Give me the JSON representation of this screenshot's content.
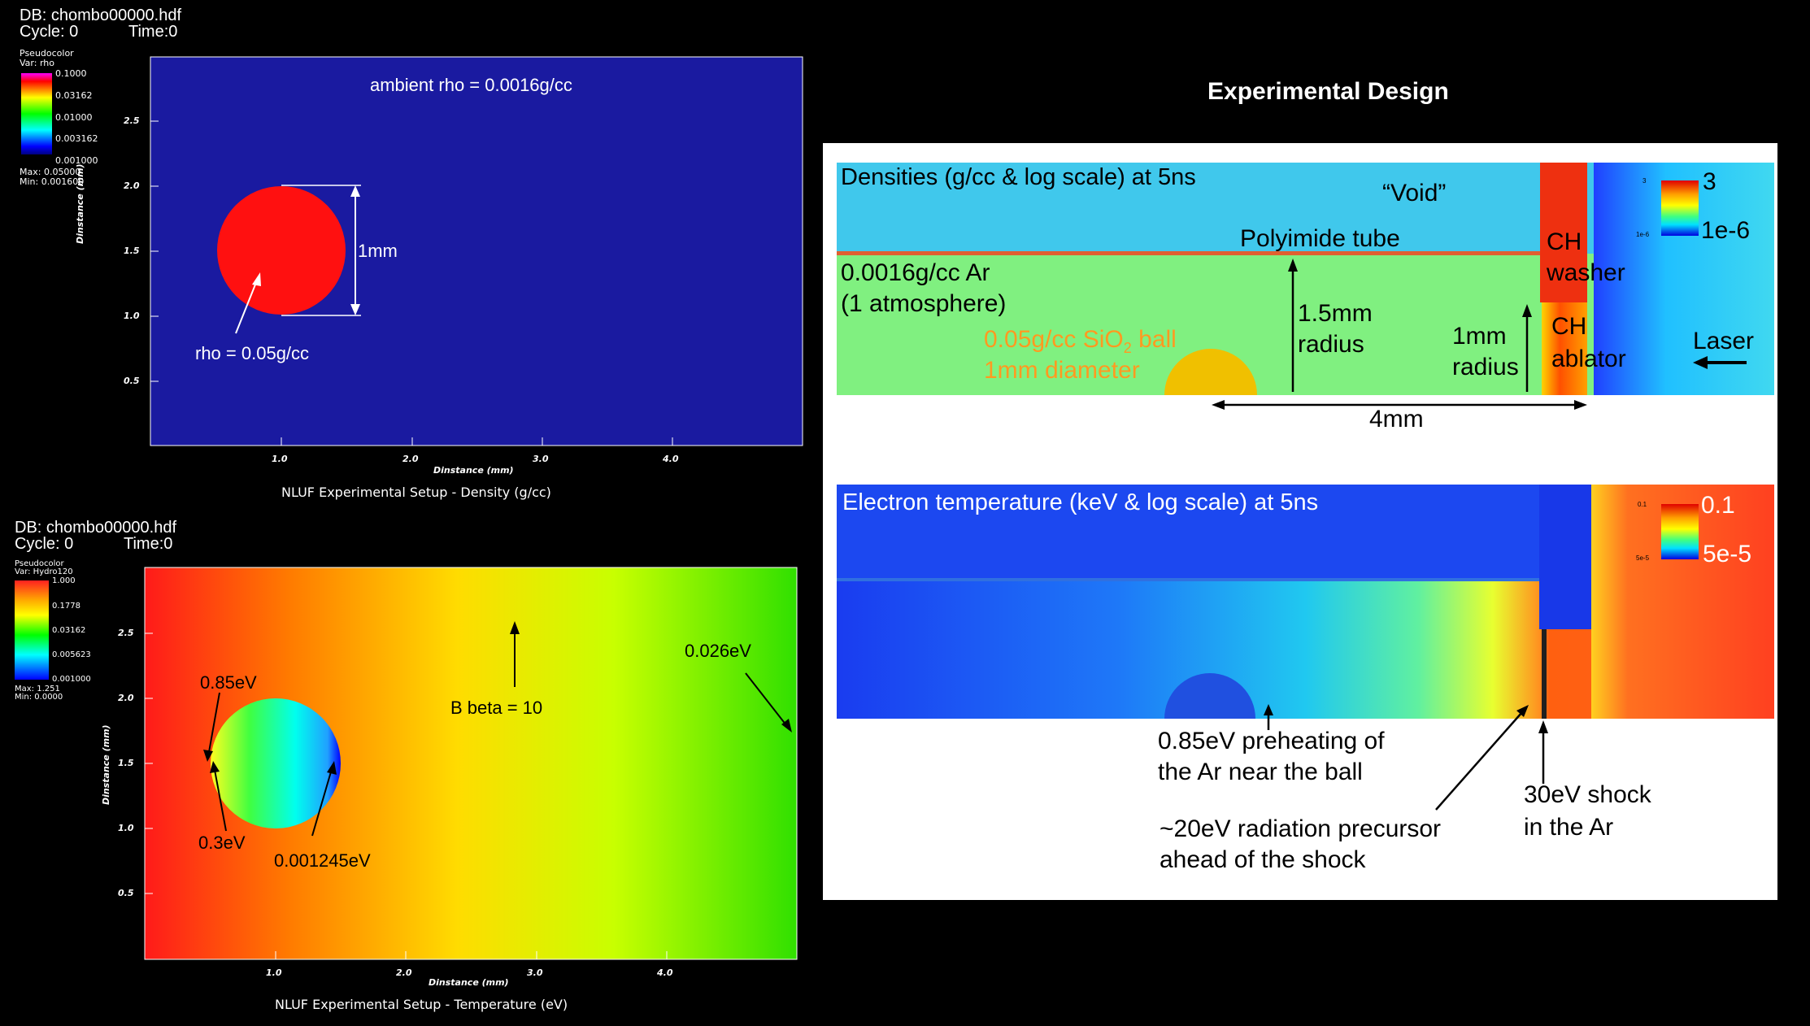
{
  "top_panel": {
    "db": "DB: chombo00000.hdf",
    "cycle": "Cycle: 0",
    "time": "Time:0",
    "legend": {
      "title": "Pseudocolor",
      "var": "Var: rho",
      "ticks": [
        "0.1000",
        "0.03162",
        "0.01000",
        "0.003162",
        "0.001000"
      ],
      "max": "Max:  0.05000",
      "min": "Min:  0.001600"
    },
    "yticks": [
      "2.5",
      "2.0",
      "1.5",
      "1.0",
      "0.5"
    ],
    "xticks": [
      "1.0",
      "2.0",
      "3.0",
      "4.0"
    ],
    "ylabel": "Dinstance (mm)",
    "xlabel": "Dinstance (mm)",
    "caption": "NLUF Experimental Setup - Density (g/cc)",
    "ambient": "ambient rho = 0.0016g/cc",
    "size": "1mm",
    "rho_ball": "rho = 0.05g/cc",
    "colors": {
      "background": "#1a1aa0",
      "ball": "#ff1010"
    }
  },
  "bottom_panel": {
    "db": "DB: chombo00000.hdf",
    "cycle": "Cycle: 0",
    "time": "Time:0",
    "legend": {
      "title": "Pseudocolor",
      "var": "Var: Hydro120",
      "ticks": [
        "1.000",
        "0.1778",
        "0.03162",
        "0.005623",
        "0.001000"
      ],
      "max": "Max:  1.251",
      "min": "Min:  0.0000"
    },
    "yticks": [
      "2.5",
      "2.0",
      "1.5",
      "1.0",
      "0.5"
    ],
    "xticks": [
      "1.0",
      "2.0",
      "3.0",
      "4.0"
    ],
    "ylabel": "Dinstance (mm)",
    "xlabel": "Dinstance (mm)",
    "caption": "NLUF Experimental Setup - Temperature (eV)",
    "t085": "0.85eV",
    "t03": "0.3eV",
    "t0012": "0.001245eV",
    "bbeta": "B beta = 10",
    "t0026": "0.026eV"
  },
  "design": {
    "title": "Experimental Design",
    "density": {
      "heading": "Densities (g/cc & log scale) at 5ns",
      "void": "“Void”",
      "tube": "Polyimide tube",
      "ar1": "0.0016g/cc Ar",
      "ar2": "(1 atmosphere)",
      "ball1": "0.05g/cc SiO",
      "ball1_sub": "2",
      "ball1_end": " ball",
      "ball2": "1mm diameter",
      "r15a": "1.5mm",
      "r15b": "radius",
      "r1a": "1mm",
      "r1b": "radius",
      "washer1": "CH",
      "washer2": "washer",
      "ablator1": "CH",
      "ablator2": "ablator",
      "laser": "Laser",
      "dist": "4mm",
      "scale_top": "3",
      "scale_bot": "1e-6",
      "scale_small_top": "3",
      "scale_small_bot": "1e-6"
    },
    "temp": {
      "heading": "Electron temperature (keV & log scale) at 5ns",
      "scale_top": "0.1",
      "scale_bot": "5e-5",
      "scale_small_top": "0.1",
      "scale_small_bot": "5e-5",
      "pre1": "0.85eV preheating of",
      "pre2": "the Ar near the ball",
      "rad1": "~20eV radiation precursor",
      "rad2": "ahead of the shock",
      "shock1": "30eV shock",
      "shock2": "in the Ar"
    }
  }
}
